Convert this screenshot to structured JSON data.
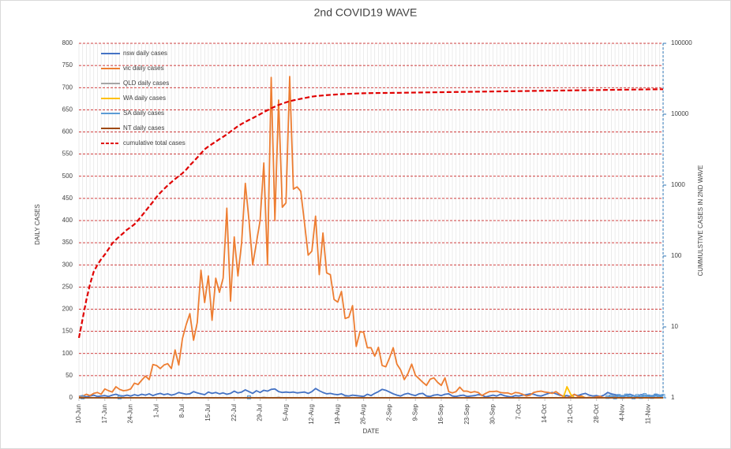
{
  "chart_data": {
    "type": "line",
    "title": "2nd COVID19 WAVE",
    "x_label": "DATE",
    "y_label": "DAILY CASES",
    "y2_label": "CUMMULSTIVE CASES  IN 2ND WAVE",
    "categories": [
      "10-Jun",
      null,
      null,
      null,
      null,
      null,
      null,
      "17-Jun",
      null,
      null,
      null,
      null,
      null,
      null,
      "24-Jun",
      null,
      null,
      null,
      null,
      null,
      null,
      "1-Jul",
      null,
      null,
      null,
      null,
      null,
      null,
      "8-Jul",
      null,
      null,
      null,
      null,
      null,
      null,
      "15-Jul",
      null,
      null,
      null,
      null,
      null,
      null,
      "22-Jul",
      null,
      null,
      null,
      null,
      null,
      null,
      "29-Jul",
      null,
      null,
      null,
      null,
      null,
      null,
      "5-Aug",
      null,
      null,
      null,
      null,
      null,
      null,
      "12-Aug",
      null,
      null,
      null,
      null,
      null,
      null,
      "19-Aug",
      null,
      null,
      null,
      null,
      null,
      null,
      "26-Aug",
      null,
      null,
      null,
      null,
      null,
      null,
      "2-Sep",
      null,
      null,
      null,
      null,
      null,
      null,
      "9-Sep",
      null,
      null,
      null,
      null,
      null,
      null,
      "16-Sep",
      null,
      null,
      null,
      null,
      null,
      null,
      "23-Sep",
      null,
      null,
      null,
      null,
      null,
      null,
      "30-Sep",
      null,
      null,
      null,
      null,
      null,
      null,
      "7-Oct",
      null,
      null,
      null,
      null,
      null,
      null,
      "14-Oct",
      null,
      null,
      null,
      null,
      null,
      null,
      "21-Oct",
      null,
      null,
      null,
      null,
      null,
      null,
      "28-Oct",
      null,
      null,
      null,
      null,
      null,
      null,
      "4-Nov",
      null,
      null,
      null,
      null,
      null,
      null,
      "11-Nov",
      null,
      null,
      null,
      null
    ],
    "ylim": [
      0,
      800
    ],
    "yticks": [
      0,
      50,
      100,
      150,
      200,
      250,
      300,
      350,
      400,
      450,
      500,
      550,
      600,
      650,
      700,
      750,
      800
    ],
    "y2lim": [
      1,
      100000
    ],
    "y2ticks": [
      1,
      10,
      100,
      1000,
      10000,
      100000
    ],
    "y2_log": true,
    "grid": true,
    "legend": "upper left",
    "series": [
      {
        "name": "nsw daily cases",
        "color": "#4472c4",
        "values": [
          3,
          5,
          2,
          4,
          6,
          3,
          4,
          5,
          3,
          6,
          8,
          5,
          4,
          6,
          4,
          7,
          5,
          8,
          6,
          9,
          5,
          8,
          10,
          7,
          9,
          6,
          8,
          12,
          10,
          8,
          9,
          14,
          11,
          9,
          7,
          13,
          10,
          12,
          9,
          11,
          8,
          10,
          15,
          11,
          13,
          18,
          14,
          10,
          16,
          12,
          17,
          15,
          19,
          20,
          14,
          12,
          13,
          12,
          13,
          11,
          12,
          13,
          10,
          14,
          21,
          16,
          12,
          9,
          10,
          8,
          7,
          9,
          5,
          4,
          6,
          5,
          4,
          3,
          8,
          5,
          10,
          14,
          19,
          17,
          13,
          9,
          6,
          4,
          8,
          10,
          7,
          5,
          9,
          10,
          4,
          3,
          6,
          7,
          5,
          8,
          9,
          4,
          3,
          5,
          6,
          3,
          4,
          5,
          7,
          6,
          2,
          4,
          6,
          4,
          8,
          5,
          3,
          2,
          5,
          4,
          6,
          7,
          9,
          8,
          5,
          4,
          7,
          10,
          12,
          9,
          6,
          4,
          5,
          3,
          7,
          5,
          8,
          10,
          6,
          4,
          5,
          3,
          6,
          12,
          9,
          7,
          5,
          4,
          6,
          8,
          5,
          3,
          7,
          6,
          5,
          4,
          8,
          6,
          5
        ]
      },
      {
        "name": "vic daily cases",
        "color": "#ed7d31",
        "values": [
          2,
          4,
          8,
          5,
          10,
          12,
          8,
          20,
          16,
          13,
          25,
          19,
          16,
          17,
          20,
          33,
          30,
          40,
          49,
          41,
          75,
          73,
          66,
          74,
          77,
          66,
          108,
          74,
          134,
          165,
          190,
          130,
          170,
          288,
          215,
          275,
          175,
          270,
          238,
          270,
          428,
          218,
          363,
          275,
          350,
          484,
          400,
          300,
          350,
          400,
          530,
          300,
          723,
          400,
          672,
          430,
          440,
          725,
          471,
          476,
          466,
          395,
          322,
          331,
          410,
          278,
          372,
          282,
          278,
          222,
          216,
          240,
          179,
          182,
          208,
          116,
          149,
          148,
          113,
          113,
          94,
          114,
          73,
          70,
          90,
          113,
          76,
          63,
          41,
          55,
          76,
          51,
          43,
          35,
          28,
          42,
          45,
          35,
          28,
          45,
          14,
          11,
          14,
          24,
          15,
          15,
          12,
          14,
          12,
          5,
          10,
          14,
          14,
          15,
          12,
          11,
          11,
          8,
          12,
          11,
          8,
          4,
          6,
          12,
          14,
          15,
          13,
          12,
          10,
          14,
          8,
          3,
          0,
          3,
          8,
          3,
          4,
          0,
          1,
          0,
          2,
          3,
          0,
          1,
          3,
          4,
          0,
          0,
          0,
          0,
          0,
          2,
          0,
          0,
          0,
          0,
          0,
          0,
          0
        ]
      },
      {
        "name": "QLD daily cases",
        "color": "#a5a5a5",
        "values": [
          0,
          0,
          0,
          0,
          0,
          0,
          0,
          0,
          0,
          0,
          0,
          0,
          0,
          0,
          0,
          0,
          0,
          0,
          0,
          0,
          0,
          0,
          0,
          0,
          0,
          0,
          0,
          0,
          0,
          0,
          0,
          0,
          0,
          0,
          0,
          0,
          0,
          0,
          0,
          0,
          0,
          0,
          0,
          0,
          0,
          0,
          0,
          0,
          0,
          0,
          1,
          0,
          0,
          0,
          1,
          0,
          0,
          0,
          0,
          0,
          0,
          0,
          0,
          0,
          0,
          0,
          0,
          0,
          0,
          0,
          0,
          0,
          1,
          0,
          0,
          0,
          0,
          0,
          0,
          0,
          0,
          0,
          0,
          0,
          0,
          0,
          0,
          0,
          0,
          0,
          0,
          0,
          0,
          0,
          0,
          0,
          0,
          0,
          0,
          0,
          0,
          0,
          0,
          0,
          0,
          0,
          0,
          0,
          0,
          0,
          0,
          0,
          0,
          0,
          0,
          0,
          0,
          0,
          0,
          0,
          0,
          0,
          0,
          0,
          0,
          0,
          0,
          0,
          0,
          0,
          0,
          0,
          0,
          0,
          0,
          0,
          0,
          0,
          0,
          0,
          0,
          0,
          0,
          0,
          0,
          0,
          0,
          0,
          0,
          0,
          0,
          0,
          0,
          0,
          0,
          0,
          0,
          0,
          0
        ]
      },
      {
        "name": "WA  daily cases",
        "color": "#ffc000",
        "values": [
          0,
          0,
          0,
          0,
          0,
          0,
          0,
          0,
          0,
          0,
          0,
          0,
          0,
          0,
          0,
          0,
          0,
          0,
          0,
          0,
          0,
          0,
          0,
          0,
          0,
          0,
          0,
          0,
          0,
          0,
          0,
          0,
          0,
          0,
          0,
          0,
          0,
          0,
          0,
          0,
          0,
          0,
          0,
          0,
          0,
          0,
          0,
          0,
          0,
          0,
          0,
          0,
          0,
          0,
          0,
          0,
          0,
          0,
          0,
          0,
          0,
          0,
          0,
          0,
          0,
          0,
          0,
          0,
          0,
          0,
          0,
          0,
          0,
          0,
          0,
          0,
          0,
          0,
          0,
          0,
          0,
          0,
          0,
          0,
          0,
          0,
          0,
          0,
          0,
          0,
          0,
          0,
          0,
          0,
          0,
          0,
          0,
          0,
          0,
          0,
          0,
          0,
          0,
          0,
          0,
          0,
          0,
          0,
          0,
          0,
          0,
          0,
          0,
          0,
          0,
          0,
          0,
          0,
          0,
          0,
          0,
          0,
          0,
          0,
          0,
          0,
          0,
          0,
          0,
          0,
          0,
          0,
          25,
          8,
          0,
          0,
          1,
          0,
          0,
          0,
          0,
          0,
          0,
          0,
          0,
          0,
          0,
          0,
          0,
          0,
          0,
          0,
          0,
          0,
          0,
          0,
          0,
          0,
          0
        ]
      },
      {
        "name": "SA  daily cases",
        "color": "#5b9bd5",
        "marker": "square",
        "values": [
          0,
          1,
          0,
          0,
          0,
          0,
          0,
          0,
          0,
          0,
          0,
          1,
          0,
          0,
          0,
          0,
          0,
          0,
          0,
          0,
          0,
          0,
          0,
          0,
          0,
          0,
          0,
          0,
          0,
          0,
          0,
          0,
          0,
          0,
          0,
          0,
          0,
          0,
          0,
          0,
          0,
          0,
          0,
          0,
          0,
          0,
          1,
          0,
          0,
          0,
          0,
          0,
          0,
          0,
          0,
          0,
          0,
          0,
          0,
          0,
          0,
          0,
          0,
          0,
          0,
          0,
          0,
          0,
          0,
          0,
          0,
          0,
          0,
          0,
          0,
          0,
          0,
          0,
          0,
          0,
          0,
          0,
          0,
          0,
          0,
          0,
          0,
          0,
          0,
          0,
          0,
          0,
          0,
          0,
          0,
          0,
          0,
          0,
          0,
          0,
          0,
          0,
          0,
          0,
          0,
          0,
          0,
          0,
          0,
          0,
          0,
          0,
          0,
          0,
          0,
          0,
          0,
          0,
          0,
          0,
          0,
          0,
          0,
          0,
          0,
          0,
          0,
          0,
          0,
          0,
          0,
          0,
          0,
          0,
          0,
          0,
          0,
          0,
          0,
          0,
          0,
          0,
          0,
          2,
          3,
          1,
          4,
          2,
          5,
          3,
          1,
          4,
          2,
          6,
          3,
          2,
          5,
          3,
          4
        ]
      },
      {
        "name": "NT daily cases",
        "color": "#9e480e",
        "values": [
          0,
          0,
          0,
          0,
          0,
          0,
          0,
          0,
          0,
          0,
          0,
          0,
          0,
          0,
          0,
          0,
          0,
          0,
          0,
          0,
          0,
          0,
          0,
          0,
          0,
          0,
          0,
          0,
          0,
          0,
          0,
          0,
          0,
          0,
          0,
          0,
          0,
          0,
          0,
          0,
          0,
          0,
          0,
          0,
          0,
          0,
          0,
          0,
          0,
          0,
          0,
          0,
          0,
          0,
          0,
          0,
          0,
          0,
          0,
          0,
          0,
          0,
          0,
          0,
          0,
          0,
          0,
          0,
          0,
          0,
          0,
          0,
          0,
          0,
          0,
          0,
          0,
          0,
          0,
          0,
          0,
          0,
          0,
          0,
          0,
          0,
          0,
          0,
          0,
          0,
          0,
          0,
          0,
          0,
          0,
          0,
          0,
          0,
          0,
          0,
          0,
          0,
          0,
          0,
          0,
          0,
          0,
          0,
          0,
          0,
          0,
          0,
          0,
          0,
          0,
          0,
          0,
          0,
          0,
          0,
          0,
          0,
          0,
          0,
          0,
          0,
          0,
          0,
          0,
          0,
          0,
          0,
          0,
          0,
          0,
          0,
          0,
          0,
          0,
          0,
          0,
          0,
          0,
          0,
          0,
          0,
          0,
          0,
          0,
          0,
          0,
          0,
          0,
          0,
          0,
          0,
          0,
          0,
          0
        ]
      },
      {
        "name": "cumulative total  cases",
        "color": "#e00000",
        "axis": "y2",
        "line_style": "dashed",
        "values": [
          7,
          13,
          24,
          40,
          60,
          75,
          90,
          105,
          125,
          150,
          170,
          190,
          210,
          235,
          255,
          280,
          320,
          370,
          430,
          500,
          580,
          680,
          780,
          880,
          990,
          1100,
          1220,
          1340,
          1470,
          1650,
          1900,
          2150,
          2450,
          2800,
          3200,
          3500,
          3800,
          4100,
          4450,
          4800,
          5200,
          5700,
          6200,
          6800,
          7300,
          7800,
          8300,
          8800,
          9400,
          10000,
          10700,
          11400,
          12100,
          12800,
          13500,
          14100,
          14700,
          15200,
          15700,
          16100,
          16500,
          16900,
          17300,
          17700,
          18000,
          18200,
          18400,
          18600,
          18750,
          18900,
          19050,
          19200,
          19300,
          19400,
          19500,
          19600,
          19680,
          19750,
          19800,
          19850,
          19890,
          19920,
          19950,
          19970,
          19990,
          20000,
          20030,
          20060,
          20100,
          20130,
          20170,
          20200,
          20240,
          20270,
          20310,
          20340,
          20380,
          20410,
          20450,
          20480,
          20520,
          20550,
          20590,
          20620,
          20660,
          20690,
          20730,
          20760,
          20800,
          20830,
          20870,
          20900,
          20940,
          20970,
          21010,
          21040,
          21080,
          21110,
          21150,
          21180,
          21220,
          21250,
          21290,
          21320,
          21360,
          21390,
          21430,
          21460,
          21500,
          21530,
          21570,
          21600,
          21640,
          21670,
          21710,
          21740,
          21780,
          21810,
          21850,
          21880,
          21920,
          21950,
          21990,
          22020,
          22060,
          22090,
          22130,
          22160,
          22200,
          22230,
          22270,
          22300,
          22340,
          22370,
          22410,
          22440,
          22470,
          22490,
          22500
        ]
      }
    ]
  }
}
